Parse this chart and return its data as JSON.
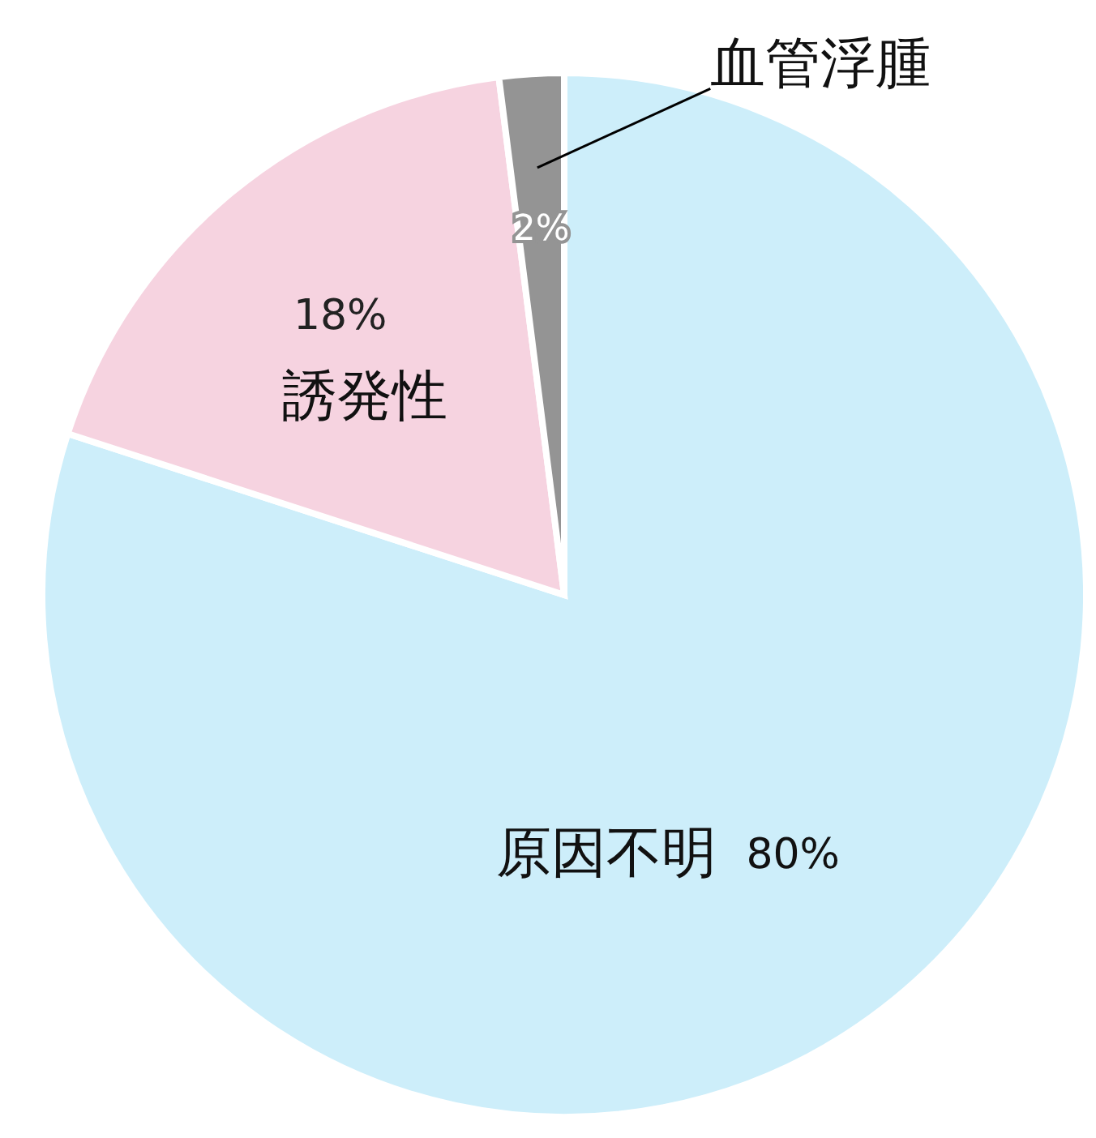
{
  "chart_data": {
    "type": "pie",
    "categories": [
      "原因不明",
      "誘発性",
      "血管浮腫"
    ],
    "values": [
      80,
      18,
      2
    ],
    "value_labels": [
      "80%",
      "18%",
      "2%"
    ],
    "colors": [
      "#cdeefa",
      "#f6d3e0",
      "#949494"
    ],
    "legend": false
  }
}
